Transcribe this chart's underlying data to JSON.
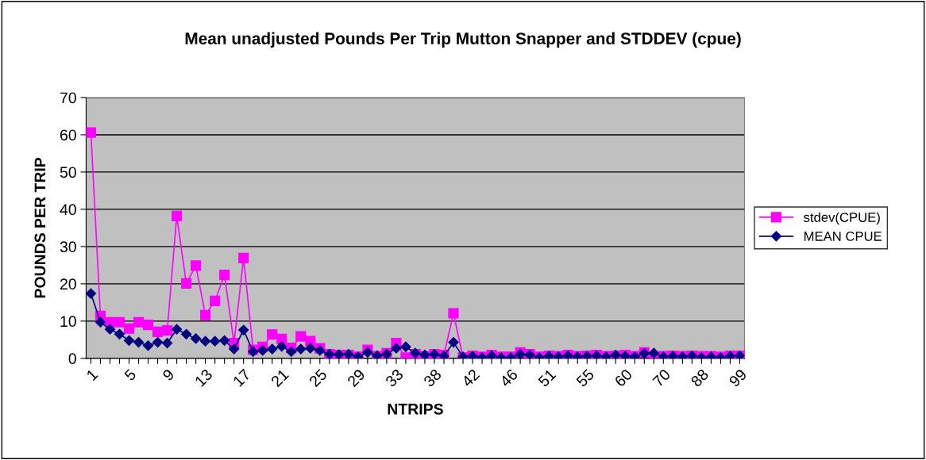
{
  "chart_data": {
    "type": "line",
    "title": "Mean unadjusted Pounds Per Trip Mutton Snapper and STDDEV (cpue)",
    "xlabel": "NTRIPS",
    "ylabel": "POUNDS PER TRIP",
    "categories": [
      "1",
      null,
      null,
      null,
      "5",
      null,
      null,
      null,
      "9",
      null,
      null,
      null,
      "13",
      null,
      null,
      null,
      "17",
      null,
      null,
      null,
      "21",
      null,
      null,
      null,
      "25",
      null,
      null,
      null,
      "29",
      null,
      null,
      null,
      "33",
      null,
      null,
      null,
      "38",
      null,
      null,
      null,
      "42",
      null,
      null,
      null,
      "46",
      null,
      null,
      null,
      "51",
      null,
      null,
      null,
      "55",
      null,
      null,
      null,
      "60",
      null,
      null,
      null,
      "70",
      null,
      null,
      null,
      "88",
      null,
      null,
      null,
      "99"
    ],
    "series": [
      {
        "name": "stdev(CPUE)",
        "color": "#ff00ff",
        "marker": "square",
        "values": [
          60.6,
          11.4,
          9.7,
          9.7,
          8.0,
          9.7,
          9.0,
          7.1,
          7.5,
          38.2,
          20.1,
          24.9,
          11.6,
          15.4,
          22.4,
          4.1,
          26.9,
          2.3,
          3.1,
          6.4,
          5.2,
          2.8,
          5.9,
          4.6,
          2.7,
          1.1,
          0.9,
          0.9,
          0.4,
          2.3,
          0.6,
          1.4,
          4.1,
          0.2,
          1.1,
          0.6,
          1.1,
          0.9,
          12.1,
          0.2,
          0.7,
          0.4,
          0.9,
          0.4,
          0.4,
          1.6,
          1.1,
          0.4,
          0.7,
          0.6,
          0.9,
          0.6,
          0.7,
          0.9,
          0.6,
          0.7,
          0.9,
          0.6,
          1.6,
          0.2,
          0.6,
          0.7,
          0.6,
          0.7,
          0.6,
          0.6,
          0.4,
          0.7,
          0.7
        ]
      },
      {
        "name": "MEAN CPUE",
        "color": "#000080",
        "marker": "diamond",
        "values": [
          17.4,
          9.7,
          7.8,
          6.5,
          4.8,
          4.3,
          3.4,
          4.3,
          4.1,
          7.8,
          6.5,
          5.3,
          4.6,
          4.6,
          4.8,
          2.5,
          7.6,
          1.8,
          2.1,
          2.5,
          3.2,
          1.8,
          2.5,
          2.7,
          2.1,
          1.1,
          1.0,
          1.1,
          0.4,
          1.6,
          0.7,
          1.1,
          2.7,
          3.1,
          1.4,
          0.9,
          1.1,
          0.6,
          4.3,
          0.4,
          0.6,
          0.2,
          0.7,
          0.2,
          0.2,
          1.1,
          0.9,
          0.2,
          0.6,
          0.4,
          0.7,
          0.4,
          0.6,
          0.7,
          0.4,
          0.9,
          0.6,
          0.4,
          1.3,
          1.4,
          0.4,
          0.6,
          0.4,
          0.7,
          0.2,
          0.4,
          0.2,
          0.6,
          0.7
        ]
      }
    ],
    "ylim": [
      0,
      70
    ],
    "yticks": [
      0,
      10,
      20,
      30,
      40,
      50,
      60,
      70
    ],
    "grid": "y",
    "legend": "right",
    "line_style": "solid"
  }
}
